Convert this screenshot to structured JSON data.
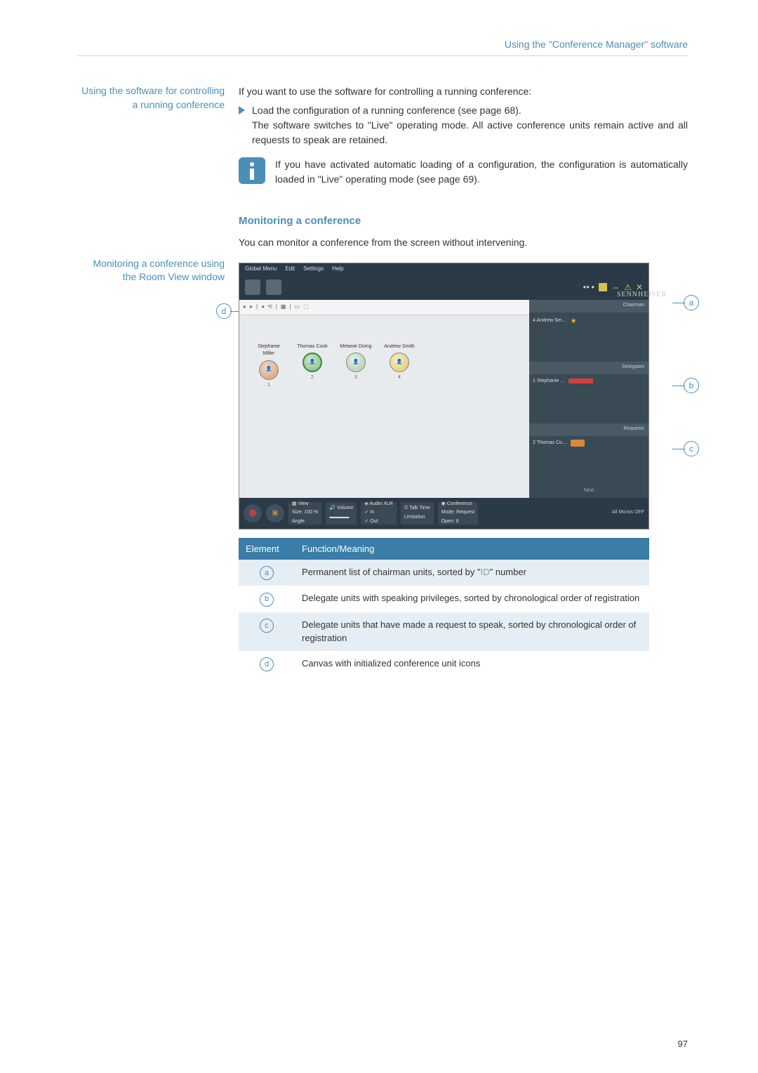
{
  "header": "Using the \"Conference Manager\" software",
  "side1": "Using the software for controlling a running conference",
  "intro1": "If you want to use the software for controlling a running conference:",
  "bullet1_a": "Load the configuration of a running conference (see page 68).",
  "bullet1_b": "The software switches to \"Live\" operating mode. All active conference units remain active and all requests to speak are retained.",
  "info1": "If you have activated automatic loading of a configuration, the configuration is automatically loaded in \"Live\" operating mode (see page 69).",
  "heading2": "Monitoring a conference",
  "intro2": "You can monitor a conference from the screen without intervening.",
  "side2": "Monitoring a conference using the Room View window",
  "screenshot": {
    "menu": [
      "Global Menu",
      "Edit",
      "Settings",
      "Help"
    ],
    "brand": "SENNHEISER",
    "delegates": [
      {
        "name": "Stephanie Miller",
        "num": "1"
      },
      {
        "name": "Thomas Cook",
        "num": "2"
      },
      {
        "name": "Melanie Domg",
        "num": "3"
      },
      {
        "name": "Andrew Smith",
        "num": "4"
      }
    ],
    "panel_a_hd": "Chairman",
    "panel_a_item": "4  Andrew Sm…",
    "panel_b_hd": "Delegates",
    "panel_b_item": "1  Stephanie …",
    "panel_c_hd": "Requests",
    "panel_c_item": "2  Thomas Co…",
    "panel_next": "Next",
    "footer": {
      "view": "View",
      "size": "Size: 100 %",
      "angle": "Angle",
      "volume": "Volume",
      "audio_xlr": "Audio XLR",
      "in": "✓ In",
      "out": "✓ Out",
      "talktime": "Talk Time",
      "limitation": "Limitation",
      "conference": "Conference",
      "mode": "Mode:",
      "request": "Request",
      "open": "Open: 8",
      "allmics": "All Micros OFF"
    }
  },
  "table": {
    "head1": "Element",
    "head2": "Function/Meaning",
    "rows": [
      {
        "k": "a",
        "v": "Permanent list of chairman units, sorted by \"ID\" number",
        "alt": true
      },
      {
        "k": "b",
        "v": "Delegate units with speaking privileges, sorted by chronological order of registration",
        "alt": false
      },
      {
        "k": "c",
        "v": "Delegate units that have made a request to speak, sorted by chronological order of registration",
        "alt": true
      },
      {
        "k": "d",
        "v": "Canvas with initialized conference unit icons",
        "alt": false
      }
    ],
    "id_label": "ID"
  },
  "page": "97"
}
